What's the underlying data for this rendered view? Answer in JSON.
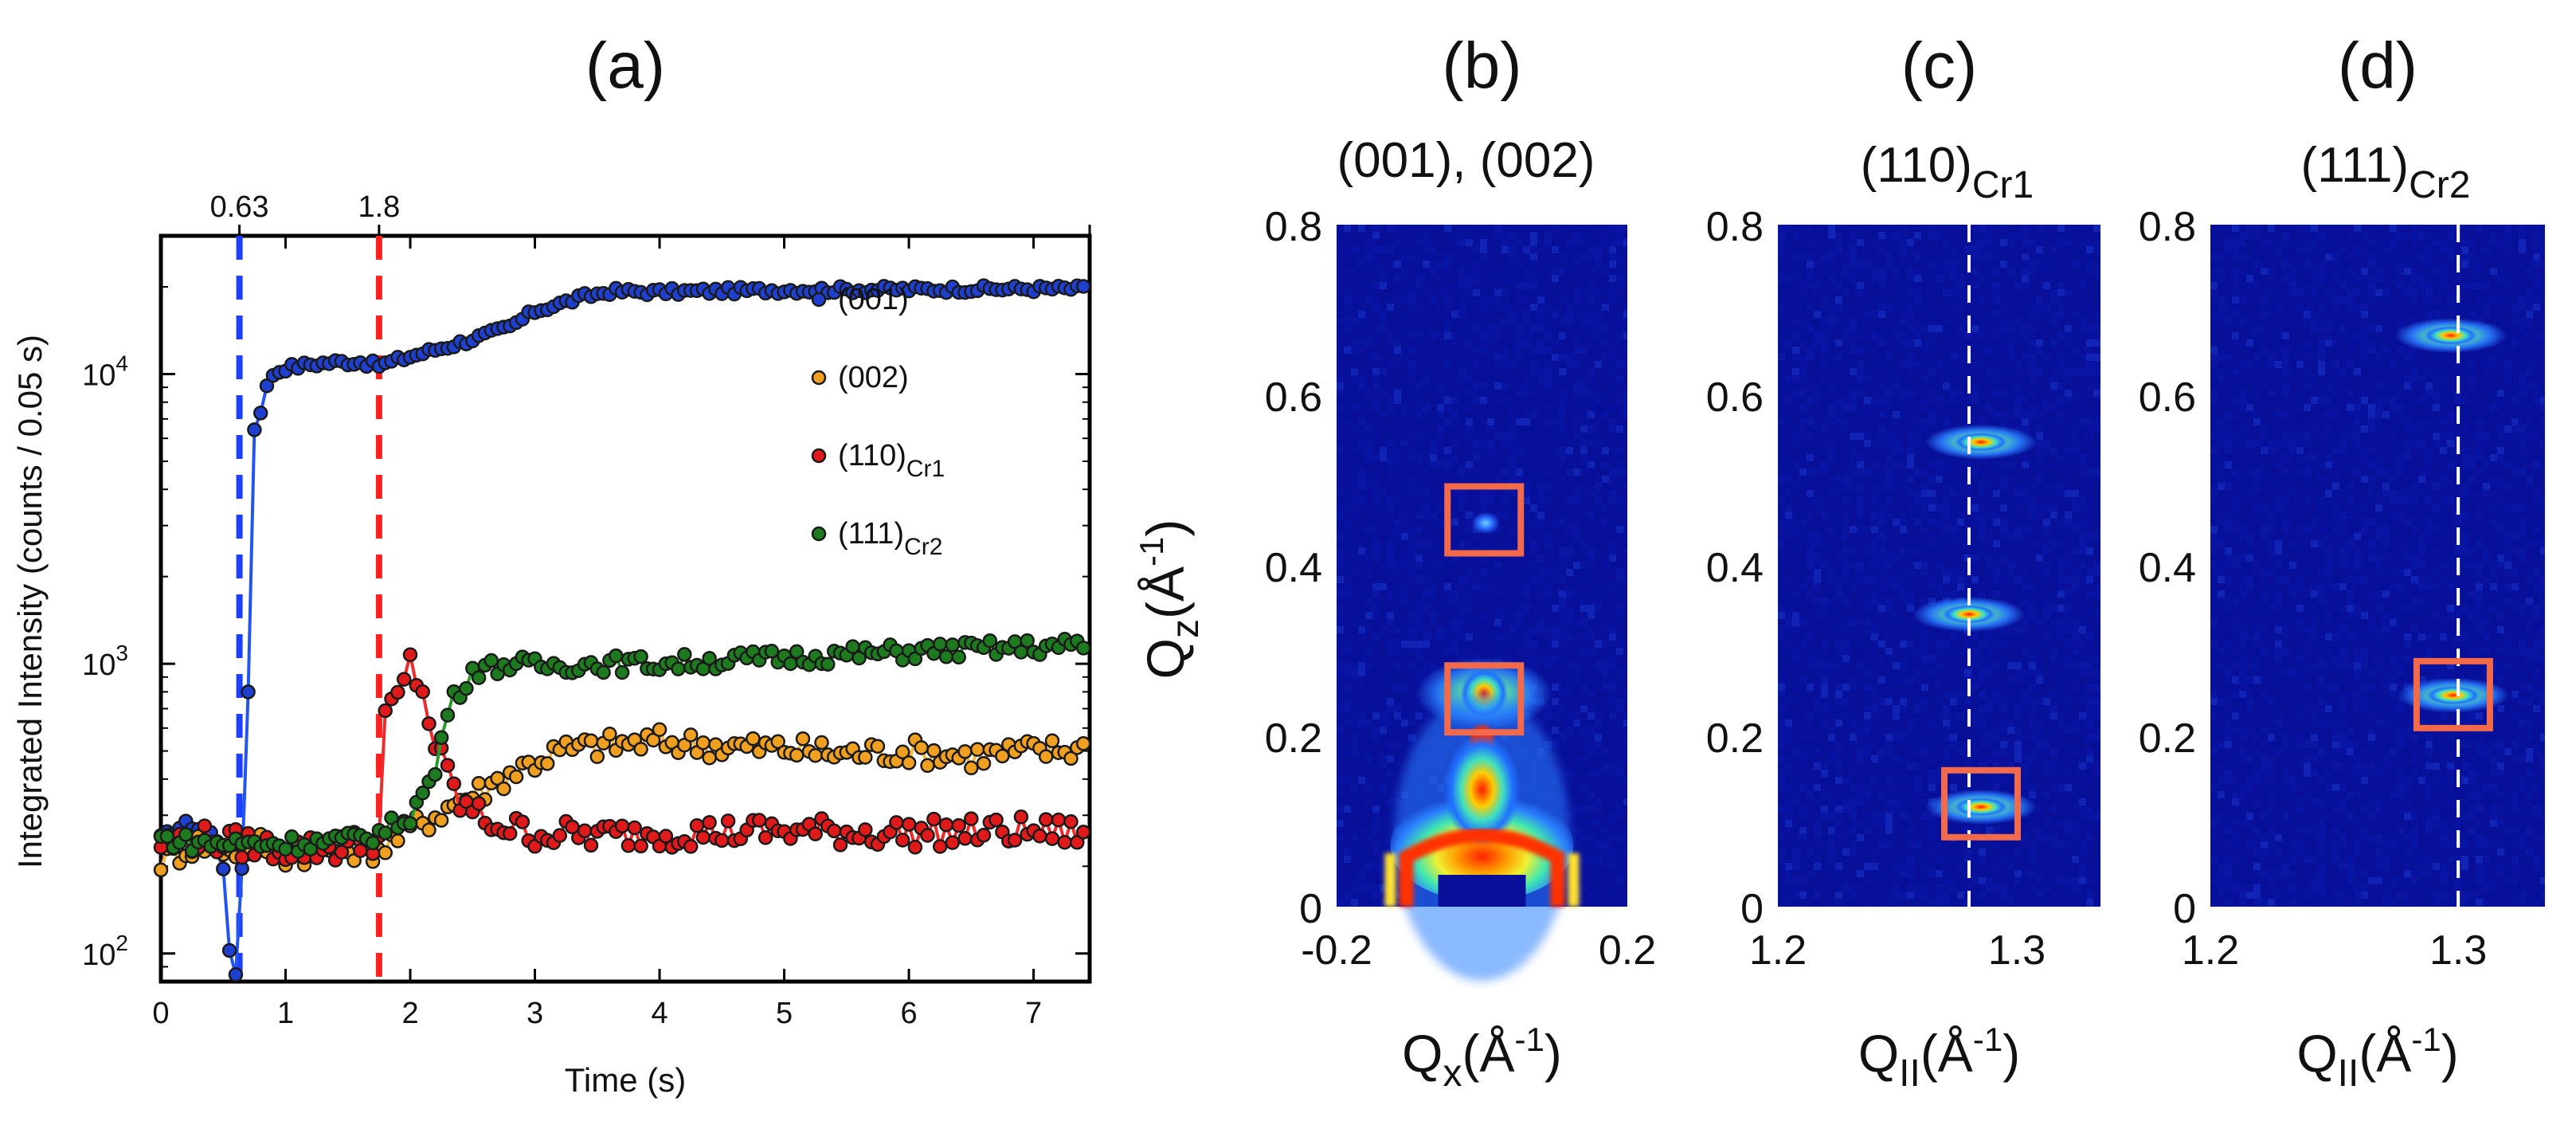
{
  "colors": {
    "series_001": "#1f3fcf",
    "series_002": "#f0a020",
    "series_110": "#e01a1a",
    "series_111": "#1e7a1e",
    "line_001": "#2255ee",
    "line_002": "#f5b840",
    "line_110": "#ee2a2a",
    "line_111": "#2a9a2a",
    "box": "#f26a4a",
    "dashed_blue": "#1f3fff",
    "dashed_red": "#ff2020",
    "map_bg": "#08109a"
  },
  "chart_data": [
    {
      "type": "scatter",
      "panel_label": "(a)",
      "xlabel": "Time (s)",
      "ylabel": "Integrated Intensity (counts / 0.05 s)",
      "yscale": "log",
      "xlim": [
        0,
        7.45
      ],
      "ylim": [
        80,
        30000
      ],
      "xticks": [
        "0",
        "1",
        "2",
        "3",
        "4",
        "5",
        "6",
        "7"
      ],
      "yticks": [
        "10",
        "10",
        "10"
      ],
      "ytick_exps": [
        "2",
        "3",
        "4"
      ],
      "top_ticks": [
        "0.63",
        "1.8"
      ],
      "vlines": [
        0.63,
        1.75
      ],
      "legend": {
        "position": "right",
        "entries": [
          {
            "main": "(001)",
            "sub": ""
          },
          {
            "main": "(002)",
            "sub": ""
          },
          {
            "main": "(110)",
            "sub": "Cr1"
          },
          {
            "main": "(111)",
            "sub": "Cr2"
          }
        ]
      },
      "series": [
        {
          "name": "(001)",
          "points": [
            [
              0.0,
              250
            ],
            [
              0.1,
              265
            ],
            [
              0.2,
              280
            ],
            [
              0.3,
              270
            ],
            [
              0.4,
              260
            ],
            [
              0.5,
              200
            ],
            [
              0.55,
              100
            ],
            [
              0.6,
              85
            ],
            [
              0.65,
              200
            ],
            [
              0.7,
              800
            ],
            [
              0.75,
              6500
            ],
            [
              0.8,
              7500
            ],
            [
              0.85,
              9000
            ],
            [
              0.9,
              10000
            ],
            [
              1.0,
              10500
            ],
            [
              1.2,
              10800
            ],
            [
              1.4,
              11000
            ],
            [
              1.6,
              11000
            ],
            [
              1.75,
              10700
            ],
            [
              2.0,
              11500
            ],
            [
              2.4,
              12800
            ],
            [
              2.8,
              14500
            ],
            [
              3.0,
              16500
            ],
            [
              3.4,
              18500
            ],
            [
              3.6,
              19300
            ],
            [
              4.0,
              19200
            ],
            [
              5.0,
              19500
            ],
            [
              6.0,
              19600
            ],
            [
              7.0,
              19700
            ],
            [
              7.4,
              19700
            ]
          ]
        },
        {
          "name": "(002)",
          "points": [
            [
              0.0,
              210
            ],
            [
              0.3,
              240
            ],
            [
              0.6,
              230
            ],
            [
              0.8,
              240
            ],
            [
              1.0,
              220
            ],
            [
              1.4,
              230
            ],
            [
              1.75,
              230
            ],
            [
              2.0,
              270
            ],
            [
              2.2,
              300
            ],
            [
              2.4,
              340
            ],
            [
              2.6,
              370
            ],
            [
              2.8,
              420
            ],
            [
              3.0,
              460
            ],
            [
              3.2,
              500
            ],
            [
              3.5,
              520
            ],
            [
              4.0,
              540
            ],
            [
              4.5,
              520
            ],
            [
              5.0,
              510
            ],
            [
              5.5,
              490
            ],
            [
              6.0,
              500
            ],
            [
              6.5,
              480
            ],
            [
              7.0,
              500
            ],
            [
              7.4,
              510
            ]
          ]
        },
        {
          "name": "(110)Cr1",
          "points": [
            [
              0.0,
              240
            ],
            [
              0.3,
              250
            ],
            [
              0.6,
              240
            ],
            [
              1.0,
              230
            ],
            [
              1.4,
              230
            ],
            [
              1.75,
              250
            ],
            [
              1.8,
              650
            ],
            [
              1.9,
              750
            ],
            [
              2.0,
              1000
            ],
            [
              2.1,
              800
            ],
            [
              2.2,
              520
            ],
            [
              2.4,
              330
            ],
            [
              2.6,
              290
            ],
            [
              2.8,
              270
            ],
            [
              3.0,
              260
            ],
            [
              3.5,
              255
            ],
            [
              4.0,
              260
            ],
            [
              5.0,
              265
            ],
            [
              6.0,
              260
            ],
            [
              7.0,
              265
            ],
            [
              7.4,
              260
            ]
          ]
        },
        {
          "name": "(111)Cr2",
          "points": [
            [
              0.0,
              250
            ],
            [
              0.3,
              240
            ],
            [
              0.6,
              240
            ],
            [
              1.0,
              240
            ],
            [
              1.5,
              245
            ],
            [
              1.75,
              260
            ],
            [
              2.0,
              300
            ],
            [
              2.2,
              420
            ],
            [
              2.3,
              700
            ],
            [
              2.5,
              950
            ],
            [
              2.8,
              1000
            ],
            [
              3.0,
              980
            ],
            [
              3.5,
              1000
            ],
            [
              4.0,
              1000
            ],
            [
              5.0,
              1050
            ],
            [
              6.0,
              1100
            ],
            [
              7.0,
              1140
            ],
            [
              7.4,
              1150
            ]
          ]
        }
      ]
    },
    {
      "type": "heatmap",
      "panel_label": "(b)",
      "subtitle": "(001), (002)",
      "xlabel_main": "Q",
      "xlabel_sub": "x",
      "xlabel_unit": "(Å",
      "xlabel_exp": "-1",
      "xlabel_close": ")",
      "ylabel_main": "Q",
      "ylabel_sub": "z",
      "ylabel_unit": "(Å",
      "ylabel_exp": "-1",
      "ylabel_close": ")",
      "xticks": [
        "-0.2",
        "0.2"
      ],
      "yticks": [
        "0",
        "0.2",
        "0.4",
        "0.6",
        "0.8"
      ],
      "xlim": [
        -0.2,
        0.2
      ],
      "ylim": [
        0,
        0.8
      ],
      "boxes": [
        {
          "x": 0.003,
          "y": 0.45
        },
        {
          "x": 0.003,
          "y": 0.24
        }
      ],
      "spots": [
        {
          "x": 0.005,
          "y": 0.45,
          "kind": "weak"
        },
        {
          "x": 0.003,
          "y": 0.25,
          "kind": "strong"
        },
        {
          "x": 0.0,
          "y": 0.1,
          "kind": "trunk"
        }
      ]
    },
    {
      "type": "heatmap",
      "panel_label": "(c)",
      "subtitle_main": "(110)",
      "subtitle_sub": "Cr1",
      "xlabel_main": "Q",
      "xlabel_sub": "II",
      "xlabel_unit": "(Å",
      "xlabel_exp": "-1",
      "xlabel_close": ")",
      "xticks": [
        "1.2",
        "1.3"
      ],
      "yticks": [
        "0",
        "0.2",
        "0.4",
        "0.6",
        "0.8"
      ],
      "xlim": [
        1.2,
        1.335
      ],
      "ylim": [
        0,
        0.8
      ],
      "vline_x": 1.28,
      "boxes": [
        {
          "x": 1.285,
          "y": 0.117
        }
      ],
      "spots": [
        {
          "x": 1.285,
          "y": 0.545
        },
        {
          "x": 1.28,
          "y": 0.343
        },
        {
          "x": 1.285,
          "y": 0.117
        }
      ]
    },
    {
      "type": "heatmap",
      "panel_label": "(d)",
      "subtitle_main": "(111)",
      "subtitle_sub": "Cr2",
      "xlabel_main": "Q",
      "xlabel_sub": "II",
      "xlabel_unit": "(Å",
      "xlabel_exp": "-1",
      "xlabel_close": ")",
      "xticks": [
        "1.2",
        "1.3"
      ],
      "yticks": [
        "0",
        "0.2",
        "0.4",
        "0.6",
        "0.8"
      ],
      "xlim": [
        1.2,
        1.335
      ],
      "ylim": [
        0,
        0.8
      ],
      "vline_x": 1.3,
      "boxes": [
        {
          "x": 1.298,
          "y": 0.245
        }
      ],
      "spots": [
        {
          "x": 1.298,
          "y": 0.248
        },
        {
          "x": 1.297,
          "y": 0.67
        }
      ]
    }
  ]
}
